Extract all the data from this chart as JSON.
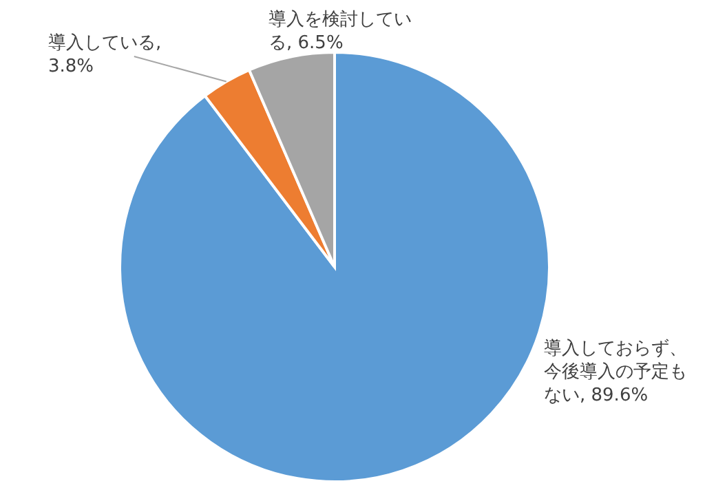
{
  "chart_data": {
    "type": "pie",
    "categories": [
      "導入しておらず、今後導入の予定もない",
      "導入している",
      "導入を検討している"
    ],
    "values": [
      89.6,
      3.8,
      6.5
    ],
    "value_labels": [
      ", 89.6%",
      ", 3.8%",
      ", 6.5%"
    ],
    "colors": [
      "#5b9bd5",
      "#ed7d31",
      "#a5a5a5"
    ],
    "legend": false
  }
}
